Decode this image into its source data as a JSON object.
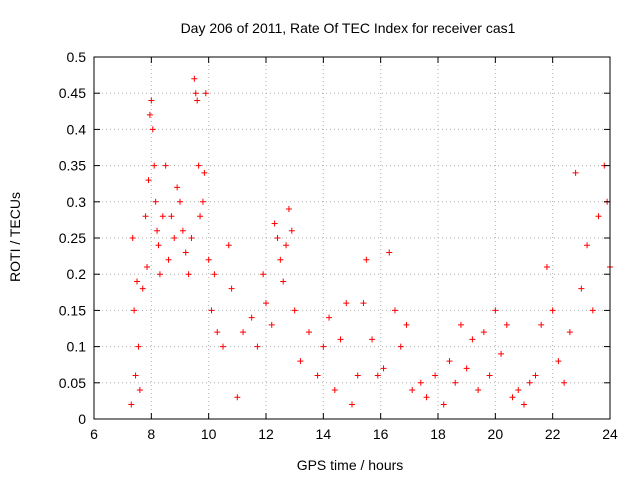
{
  "chart_data": {
    "type": "scatter",
    "title": "Day 206 of 2011, Rate Of TEC Index for receiver cas1",
    "xlabel": "GPS time / hours",
    "ylabel": "ROTI / TECUs",
    "xlim": [
      6,
      24
    ],
    "ylim": [
      0,
      0.5
    ],
    "xticks": [
      "6",
      "8",
      "10",
      "12",
      "14",
      "16",
      "18",
      "20",
      "22",
      "24"
    ],
    "yticks": [
      "0",
      "0.05",
      "0.1",
      "0.15",
      "0.2",
      "0.25",
      "0.3",
      "0.35",
      "0.4",
      "0.45",
      "0.5"
    ],
    "grid": true,
    "marker": "plus",
    "color": "#ff0000",
    "series": [
      {
        "values": [
          [
            7.3,
            0.02
          ],
          [
            7.35,
            0.25
          ],
          [
            7.4,
            0.15
          ],
          [
            7.45,
            0.06
          ],
          [
            7.5,
            0.19
          ],
          [
            7.55,
            0.1
          ],
          [
            7.6,
            0.04
          ],
          [
            7.7,
            0.18
          ],
          [
            7.8,
            0.28
          ],
          [
            7.85,
            0.21
          ],
          [
            7.9,
            0.33
          ],
          [
            7.95,
            0.42
          ],
          [
            8.0,
            0.44
          ],
          [
            8.05,
            0.4
          ],
          [
            8.1,
            0.35
          ],
          [
            8.15,
            0.3
          ],
          [
            8.2,
            0.26
          ],
          [
            8.25,
            0.24
          ],
          [
            8.3,
            0.2
          ],
          [
            8.4,
            0.28
          ],
          [
            8.5,
            0.35
          ],
          [
            8.6,
            0.22
          ],
          [
            8.7,
            0.28
          ],
          [
            8.8,
            0.25
          ],
          [
            8.9,
            0.32
          ],
          [
            9.0,
            0.3
          ],
          [
            9.1,
            0.26
          ],
          [
            9.2,
            0.23
          ],
          [
            9.3,
            0.2
          ],
          [
            9.4,
            0.25
          ],
          [
            9.5,
            0.47
          ],
          [
            9.55,
            0.45
          ],
          [
            9.6,
            0.44
          ],
          [
            9.65,
            0.35
          ],
          [
            9.7,
            0.28
          ],
          [
            9.8,
            0.3
          ],
          [
            9.85,
            0.34
          ],
          [
            9.9,
            0.45
          ],
          [
            10.0,
            0.22
          ],
          [
            10.1,
            0.15
          ],
          [
            10.2,
            0.2
          ],
          [
            10.3,
            0.12
          ],
          [
            10.5,
            0.1
          ],
          [
            10.7,
            0.24
          ],
          [
            10.8,
            0.18
          ],
          [
            11.0,
            0.03
          ],
          [
            11.2,
            0.12
          ],
          [
            11.5,
            0.14
          ],
          [
            11.7,
            0.1
          ],
          [
            11.9,
            0.2
          ],
          [
            12.0,
            0.16
          ],
          [
            12.2,
            0.13
          ],
          [
            12.3,
            0.27
          ],
          [
            12.4,
            0.25
          ],
          [
            12.5,
            0.22
          ],
          [
            12.6,
            0.19
          ],
          [
            12.7,
            0.24
          ],
          [
            12.8,
            0.29
          ],
          [
            12.9,
            0.26
          ],
          [
            13.0,
            0.15
          ],
          [
            13.2,
            0.08
          ],
          [
            13.5,
            0.12
          ],
          [
            13.8,
            0.06
          ],
          [
            14.0,
            0.1
          ],
          [
            14.2,
            0.14
          ],
          [
            14.4,
            0.04
          ],
          [
            14.6,
            0.11
          ],
          [
            14.8,
            0.16
          ],
          [
            15.0,
            0.02
          ],
          [
            15.2,
            0.06
          ],
          [
            15.4,
            0.16
          ],
          [
            15.5,
            0.22
          ],
          [
            15.7,
            0.11
          ],
          [
            15.9,
            0.06
          ],
          [
            16.1,
            0.07
          ],
          [
            16.3,
            0.23
          ],
          [
            16.5,
            0.15
          ],
          [
            16.7,
            0.1
          ],
          [
            16.9,
            0.13
          ],
          [
            17.1,
            0.04
          ],
          [
            17.4,
            0.05
          ],
          [
            17.6,
            0.03
          ],
          [
            17.9,
            0.06
          ],
          [
            18.2,
            0.02
          ],
          [
            18.4,
            0.08
          ],
          [
            18.6,
            0.05
          ],
          [
            18.8,
            0.13
          ],
          [
            19.0,
            0.07
          ],
          [
            19.2,
            0.11
          ],
          [
            19.4,
            0.04
          ],
          [
            19.6,
            0.12
          ],
          [
            19.8,
            0.06
          ],
          [
            20.0,
            0.15
          ],
          [
            20.2,
            0.09
          ],
          [
            20.4,
            0.13
          ],
          [
            20.6,
            0.03
          ],
          [
            20.8,
            0.04
          ],
          [
            21.0,
            0.02
          ],
          [
            21.2,
            0.05
          ],
          [
            21.4,
            0.06
          ],
          [
            21.6,
            0.13
          ],
          [
            21.8,
            0.21
          ],
          [
            22.0,
            0.15
          ],
          [
            22.2,
            0.08
          ],
          [
            22.4,
            0.05
          ],
          [
            22.6,
            0.12
          ],
          [
            22.8,
            0.34
          ],
          [
            23.0,
            0.18
          ],
          [
            23.2,
            0.24
          ],
          [
            23.4,
            0.15
          ],
          [
            23.6,
            0.28
          ],
          [
            23.8,
            0.35
          ],
          [
            23.9,
            0.3
          ],
          [
            24.0,
            0.21
          ]
        ]
      }
    ]
  }
}
